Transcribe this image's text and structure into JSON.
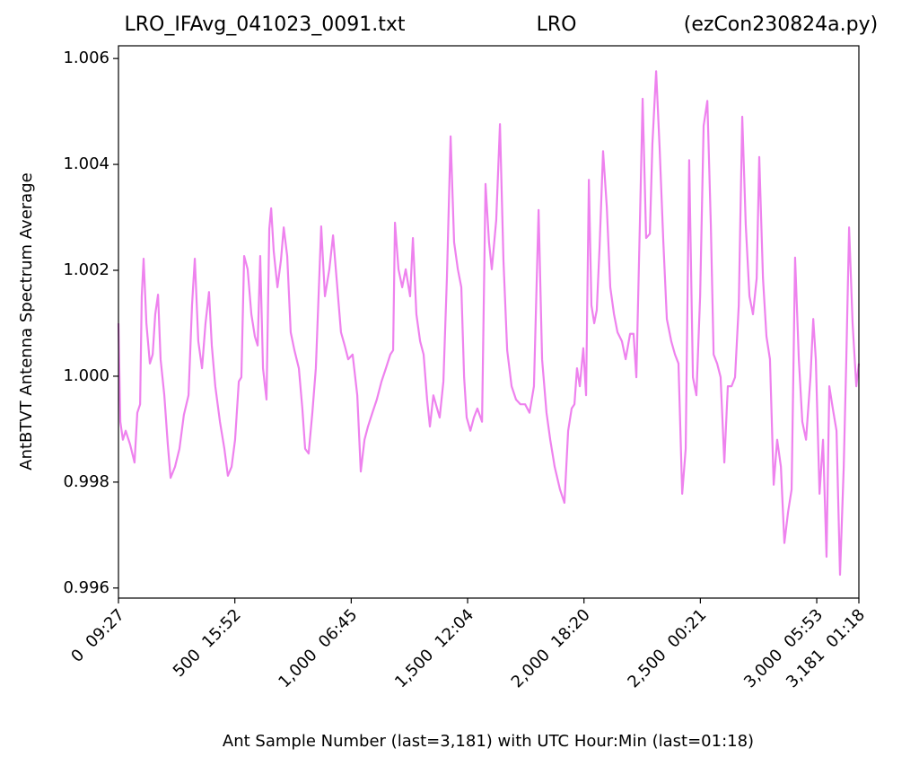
{
  "chart_data": {
    "type": "line",
    "title_left": "LRO_IFAvg_041023_0091.txt",
    "title": "LRO",
    "title_right": "(ezCon230824a.py)",
    "xlabel": "Ant Sample Number (last=3,181) with UTC Hour:Min (last=01:18)",
    "ylabel": "AntBTVT Antenna Spectrum Average",
    "color": "#ee82ee",
    "xlim": [
      0,
      3181
    ],
    "ylim": [
      0.99581,
      1.00624
    ],
    "xticks": [
      {
        "value": 0,
        "label": "0  09:27"
      },
      {
        "value": 500,
        "label": "500  15:52"
      },
      {
        "value": 1000,
        "label": "1,000  06:45"
      },
      {
        "value": 1500,
        "label": "1,500  12:04"
      },
      {
        "value": 2000,
        "label": "2,000  18:20"
      },
      {
        "value": 2500,
        "label": "2,500  00:21"
      },
      {
        "value": 3000,
        "label": "3,000  05:53"
      },
      {
        "value": 3181,
        "label": "3,181  01:18"
      }
    ],
    "yticks": [
      0.996,
      0.998,
      {
        "value": 1,
        "label": "1.000"
      },
      1.002,
      1.004,
      1.006
    ],
    "x": [
      0,
      8,
      19,
      31,
      50,
      69,
      81,
      93,
      100,
      108,
      120,
      135,
      147,
      158,
      170,
      181,
      197,
      212,
      224,
      243,
      262,
      281,
      301,
      316,
      328,
      343,
      359,
      374,
      389,
      401,
      416,
      436,
      455,
      470,
      486,
      501,
      517,
      528,
      540,
      555,
      571,
      586,
      598,
      609,
      621,
      636,
      648,
      656,
      667,
      683,
      698,
      710,
      725,
      740,
      756,
      775,
      790,
      802,
      817,
      833,
      848,
      871,
      887,
      906,
      922,
      937,
      956,
      972,
      987,
      1006,
      1026,
      1041,
      1057,
      1072,
      1091,
      1110,
      1130,
      1149,
      1168,
      1180,
      1188,
      1203,
      1219,
      1234,
      1253,
      1265,
      1280,
      1296,
      1311,
      1326,
      1338,
      1353,
      1369,
      1380,
      1396,
      1411,
      1427,
      1442,
      1458,
      1473,
      1485,
      1496,
      1512,
      1527,
      1542,
      1562,
      1577,
      1592,
      1604,
      1623,
      1639,
      1654,
      1670,
      1689,
      1708,
      1727,
      1747,
      1766,
      1785,
      1805,
      1820,
      1839,
      1855,
      1874,
      1897,
      1916,
      1932,
      1947,
      1959,
      1970,
      1982,
      1997,
      2009,
      2021,
      2032,
      2044,
      2055,
      2067,
      2082,
      2098,
      2113,
      2129,
      2144,
      2163,
      2179,
      2198,
      2213,
      2225,
      2240,
      2252,
      2267,
      2283,
      2294,
      2310,
      2325,
      2341,
      2356,
      2375,
      2391,
      2406,
      2422,
      2437,
      2452,
      2468,
      2483,
      2499,
      2514,
      2530,
      2545,
      2557,
      2572,
      2587,
      2603,
      2618,
      2634,
      2649,
      2665,
      2680,
      2695,
      2711,
      2726,
      2742,
      2753,
      2769,
      2784,
      2799,
      2815,
      2830,
      2846,
      2861,
      2877,
      2892,
      2907,
      2923,
      2938,
      2954,
      2973,
      2985,
      2996,
      3012,
      3027,
      3042,
      3054,
      3069,
      3085,
      3100,
      3116,
      3127,
      3139,
      3154,
      3170,
      3181
    ],
    "values": [
      1.001,
      0.99914,
      0.9988,
      0.99897,
      0.99871,
      0.99837,
      0.99931,
      0.99947,
      1.00151,
      1.00222,
      1.001,
      1.00024,
      1.00041,
      1.00117,
      1.00154,
      1.00032,
      0.99964,
      0.99871,
      0.99808,
      0.99829,
      0.99863,
      0.99927,
      0.99964,
      1.00134,
      1.00222,
      1.00066,
      1.00015,
      1.001,
      1.00159,
      1.00058,
      0.99981,
      0.99914,
      0.99863,
      0.99812,
      0.99829,
      0.9988,
      0.9999,
      0.99998,
      1.00227,
      1.00202,
      1.00117,
      1.00075,
      1.00058,
      1.00227,
      1.00015,
      0.99956,
      1.00278,
      1.00317,
      1.00236,
      1.00168,
      1.00219,
      1.00281,
      1.00227,
      1.00083,
      1.00049,
      1.00015,
      0.99939,
      0.99863,
      0.99854,
      0.99931,
      1.00015,
      1.00283,
      1.00151,
      1.00202,
      1.00266,
      1.00185,
      1.00083,
      1.00058,
      1.00032,
      1.00041,
      0.99964,
      0.9982,
      0.9988,
      0.99905,
      0.99931,
      0.99956,
      0.9999,
      1.00015,
      1.00041,
      1.00049,
      1.0029,
      1.00202,
      1.00168,
      1.00202,
      1.00151,
      1.00261,
      1.00117,
      1.00066,
      1.00041,
      0.99956,
      0.99905,
      0.99964,
      0.99939,
      0.99922,
      0.9999,
      1.00185,
      1.00453,
      1.00253,
      1.00202,
      1.00168,
      0.99998,
      0.99922,
      0.99897,
      0.99922,
      0.99939,
      0.99914,
      1.00363,
      1.00253,
      1.00202,
      1.00295,
      1.00476,
      1.00219,
      1.00049,
      0.99981,
      0.99956,
      0.99947,
      0.99947,
      0.99931,
      0.99981,
      1.00314,
      1.00032,
      0.99931,
      0.9988,
      0.99829,
      0.99786,
      0.99761,
      0.99897,
      0.99939,
      0.99947,
      1.00015,
      0.99981,
      1.00053,
      0.99964,
      1.00371,
      1.00134,
      1.001,
      1.00125,
      1.00244,
      1.00425,
      1.0032,
      1.00168,
      1.00117,
      1.00083,
      1.00066,
      1.00032,
      1.0008,
      1.0008,
      0.99998,
      1.00286,
      1.00524,
      1.00261,
      1.00269,
      1.00439,
      1.00576,
      1.00431,
      1.00253,
      1.00108,
      1.00066,
      1.00041,
      1.00024,
      0.99778,
      0.99863,
      1.00408,
      0.99998,
      0.99964,
      1.00151,
      1.00473,
      1.0052,
      1.00286,
      1.00041,
      1.00024,
      0.99998,
      0.99837,
      0.99981,
      0.99981,
      0.99998,
      1.00134,
      1.0049,
      1.00286,
      1.00151,
      1.00117,
      1.00185,
      1.00414,
      1.00185,
      1.00075,
      1.00032,
      0.99795,
      0.9988,
      0.99829,
      0.99685,
      0.99744,
      0.99786,
      1.00224,
      1.00032,
      0.99914,
      0.9988,
      0.99998,
      1.00108,
      1.00032,
      0.99778,
      0.9988,
      0.99659,
      0.99981,
      0.99939,
      0.99897,
      0.99625,
      0.99829,
      1.00032,
      1.00281,
      1.001,
      0.99981,
      1.00024
    ]
  }
}
